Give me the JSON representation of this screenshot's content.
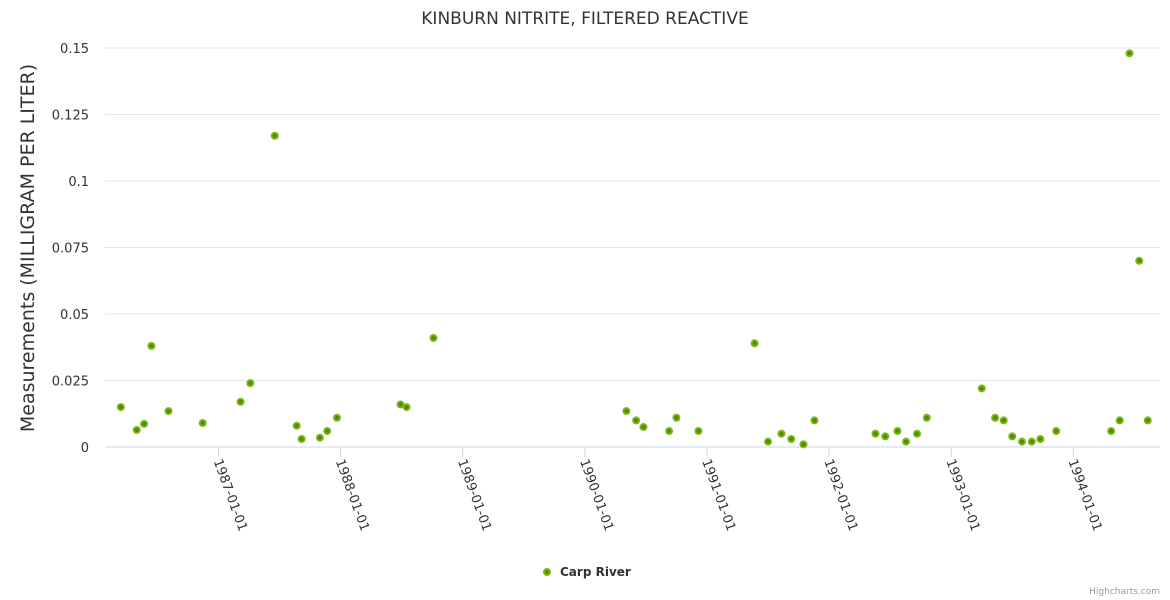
{
  "colors": {
    "marker_fill": "#7cb518",
    "marker_center": "#4c8c00",
    "grid": "#e6e6e6",
    "axis": "#ccd6eb"
  },
  "credits": "Highcharts.com",
  "chart_data": {
    "type": "scatter",
    "title": "KINBURN NITRITE, FILTERED REACTIVE",
    "xlabel": "",
    "ylabel": "Measurements (MILLIGRAM PER LITER)",
    "ylim": [
      0,
      0.15
    ],
    "xlim": [
      1986.07,
      1994.71
    ],
    "grid": true,
    "legend_placement": "bottom-center",
    "y_ticks": [
      "0",
      "0.025",
      "0.05",
      "0.075",
      "0.1",
      "0.125",
      "0.15"
    ],
    "y_tick_values": [
      0,
      0.025,
      0.05,
      0.075,
      0.1,
      0.125,
      0.15
    ],
    "x_ticks": [
      "1987-01-01",
      "1988-01-01",
      "1989-01-01",
      "1990-01-01",
      "1991-01-01",
      "1992-01-01",
      "1993-01-01",
      "1994-01-01"
    ],
    "x_tick_values": [
      1987,
      1988,
      1989,
      1990,
      1991,
      1992,
      1993,
      1994
    ],
    "series": [
      {
        "name": "Carp River",
        "x": [
          1986.2,
          1986.33,
          1986.39,
          1986.45,
          1986.59,
          1986.87,
          1987.18,
          1987.26,
          1987.46,
          1987.64,
          1987.68,
          1987.83,
          1987.89,
          1987.97,
          1988.49,
          1988.54,
          1988.76,
          1990.34,
          1990.42,
          1990.48,
          1990.69,
          1990.75,
          1990.93,
          1991.39,
          1991.5,
          1991.61,
          1991.69,
          1991.79,
          1991.88,
          1992.38,
          1992.46,
          1992.56,
          1992.63,
          1992.72,
          1992.8,
          1993.25,
          1993.36,
          1993.43,
          1993.5,
          1993.58,
          1993.66,
          1993.73,
          1993.86,
          1994.31,
          1994.38,
          1994.46,
          1994.54,
          1994.61
        ],
        "y": [
          0.015,
          0.0064,
          0.0087,
          0.038,
          0.0135,
          0.009,
          0.017,
          0.024,
          0.117,
          0.008,
          0.003,
          0.0035,
          0.006,
          0.011,
          0.016,
          0.015,
          0.041,
          0.0135,
          0.01,
          0.0075,
          0.006,
          0.011,
          0.006,
          0.039,
          0.002,
          0.005,
          0.003,
          0.001,
          0.01,
          0.005,
          0.004,
          0.006,
          0.002,
          0.005,
          0.011,
          0.022,
          0.011,
          0.01,
          0.004,
          0.002,
          0.002,
          0.003,
          0.006,
          0.006,
          0.01,
          0.148,
          0.07,
          0.01
        ]
      }
    ]
  }
}
